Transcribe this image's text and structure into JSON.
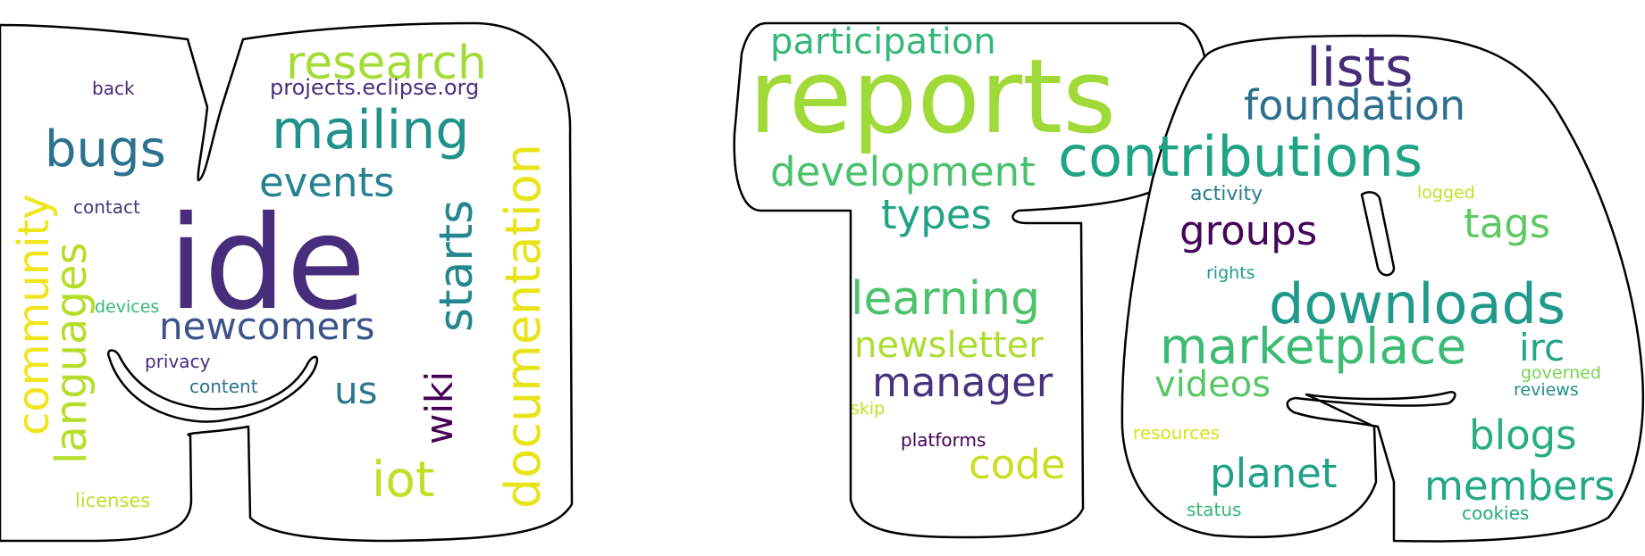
{
  "palette": {
    "outline": "#000000",
    "fill": "#ffffff"
  },
  "words": [
    {
      "id": "ide",
      "text": "ide",
      "color": "#472d7b"
    },
    {
      "id": "research",
      "text": "research",
      "color": "#a5db36"
    },
    {
      "id": "projects-eclipse-org",
      "text": "projects.eclipse.org",
      "color": "#46327e"
    },
    {
      "id": "mailing",
      "text": "mailing",
      "color": "#21918c"
    },
    {
      "id": "bugs",
      "text": "bugs",
      "color": "#2c728e"
    },
    {
      "id": "events",
      "text": "events",
      "color": "#26828e"
    },
    {
      "id": "starts",
      "text": "starts",
      "color": "#24868e"
    },
    {
      "id": "documentation",
      "text": "documentation",
      "color": "#e7e419"
    },
    {
      "id": "community",
      "text": "community",
      "color": "#f1e51d"
    },
    {
      "id": "languages",
      "text": "languages",
      "color": "#b5de2b"
    },
    {
      "id": "newcomers",
      "text": "newcomers",
      "color": "#3b528b"
    },
    {
      "id": "wiki",
      "text": "wiki",
      "color": "#440154"
    },
    {
      "id": "us",
      "text": "us",
      "color": "#2a788e"
    },
    {
      "id": "iot",
      "text": "iot",
      "color": "#c0df25"
    },
    {
      "id": "back",
      "text": "back",
      "color": "#482878"
    },
    {
      "id": "contact",
      "text": "contact",
      "color": "#443983"
    },
    {
      "id": "devices",
      "text": "devices",
      "color": "#35b779"
    },
    {
      "id": "privacy",
      "text": "privacy",
      "color": "#472f7d"
    },
    {
      "id": "content",
      "text": "content",
      "color": "#2c728e"
    },
    {
      "id": "licenses",
      "text": "licenses",
      "color": "#bddf26"
    },
    {
      "id": "participation",
      "text": "participation",
      "color": "#35b779"
    },
    {
      "id": "reports",
      "text": "reports",
      "color": "#a0da39"
    },
    {
      "id": "lists",
      "text": "lists",
      "color": "#472c7a"
    },
    {
      "id": "foundation",
      "text": "foundation",
      "color": "#2d708e"
    },
    {
      "id": "development",
      "text": "development",
      "color": "#4ac16d"
    },
    {
      "id": "contributions",
      "text": "contributions",
      "color": "#20a486"
    },
    {
      "id": "types",
      "text": "types",
      "color": "#20a386"
    },
    {
      "id": "activity",
      "text": "activity",
      "color": "#297b8e"
    },
    {
      "id": "logged",
      "text": "logged",
      "color": "#c2df23"
    },
    {
      "id": "groups",
      "text": "groups",
      "color": "#450559"
    },
    {
      "id": "tags",
      "text": "tags",
      "color": "#5ec962"
    },
    {
      "id": "rights",
      "text": "rights",
      "color": "#1f9e89"
    },
    {
      "id": "learning",
      "text": "learning",
      "color": "#4cc26c"
    },
    {
      "id": "downloads",
      "text": "downloads",
      "color": "#1f9a8a"
    },
    {
      "id": "newsletter",
      "text": "newsletter",
      "color": "#addc30"
    },
    {
      "id": "marketplace",
      "text": "marketplace",
      "color": "#3bbb75"
    },
    {
      "id": "irc",
      "text": "irc",
      "color": "#22a785"
    },
    {
      "id": "manager",
      "text": "manager",
      "color": "#46337e"
    },
    {
      "id": "videos",
      "text": "videos",
      "color": "#58c765"
    },
    {
      "id": "governed",
      "text": "governed",
      "color": "#7ad151"
    },
    {
      "id": "reviews",
      "text": "reviews",
      "color": "#228c8d"
    },
    {
      "id": "skip",
      "text": "skip",
      "color": "#c2df23"
    },
    {
      "id": "platforms",
      "text": "platforms",
      "color": "#440154"
    },
    {
      "id": "resources",
      "text": "resources",
      "color": "#d8e219"
    },
    {
      "id": "blogs",
      "text": "blogs",
      "color": "#28ae80"
    },
    {
      "id": "code",
      "text": "code",
      "color": "#c8e020"
    },
    {
      "id": "planet",
      "text": "planet",
      "color": "#1fa088"
    },
    {
      "id": "members",
      "text": "members",
      "color": "#22a884"
    },
    {
      "id": "status",
      "text": "status",
      "color": "#35b779"
    },
    {
      "id": "cookies",
      "text": "cookies",
      "color": "#25ab82"
    }
  ]
}
